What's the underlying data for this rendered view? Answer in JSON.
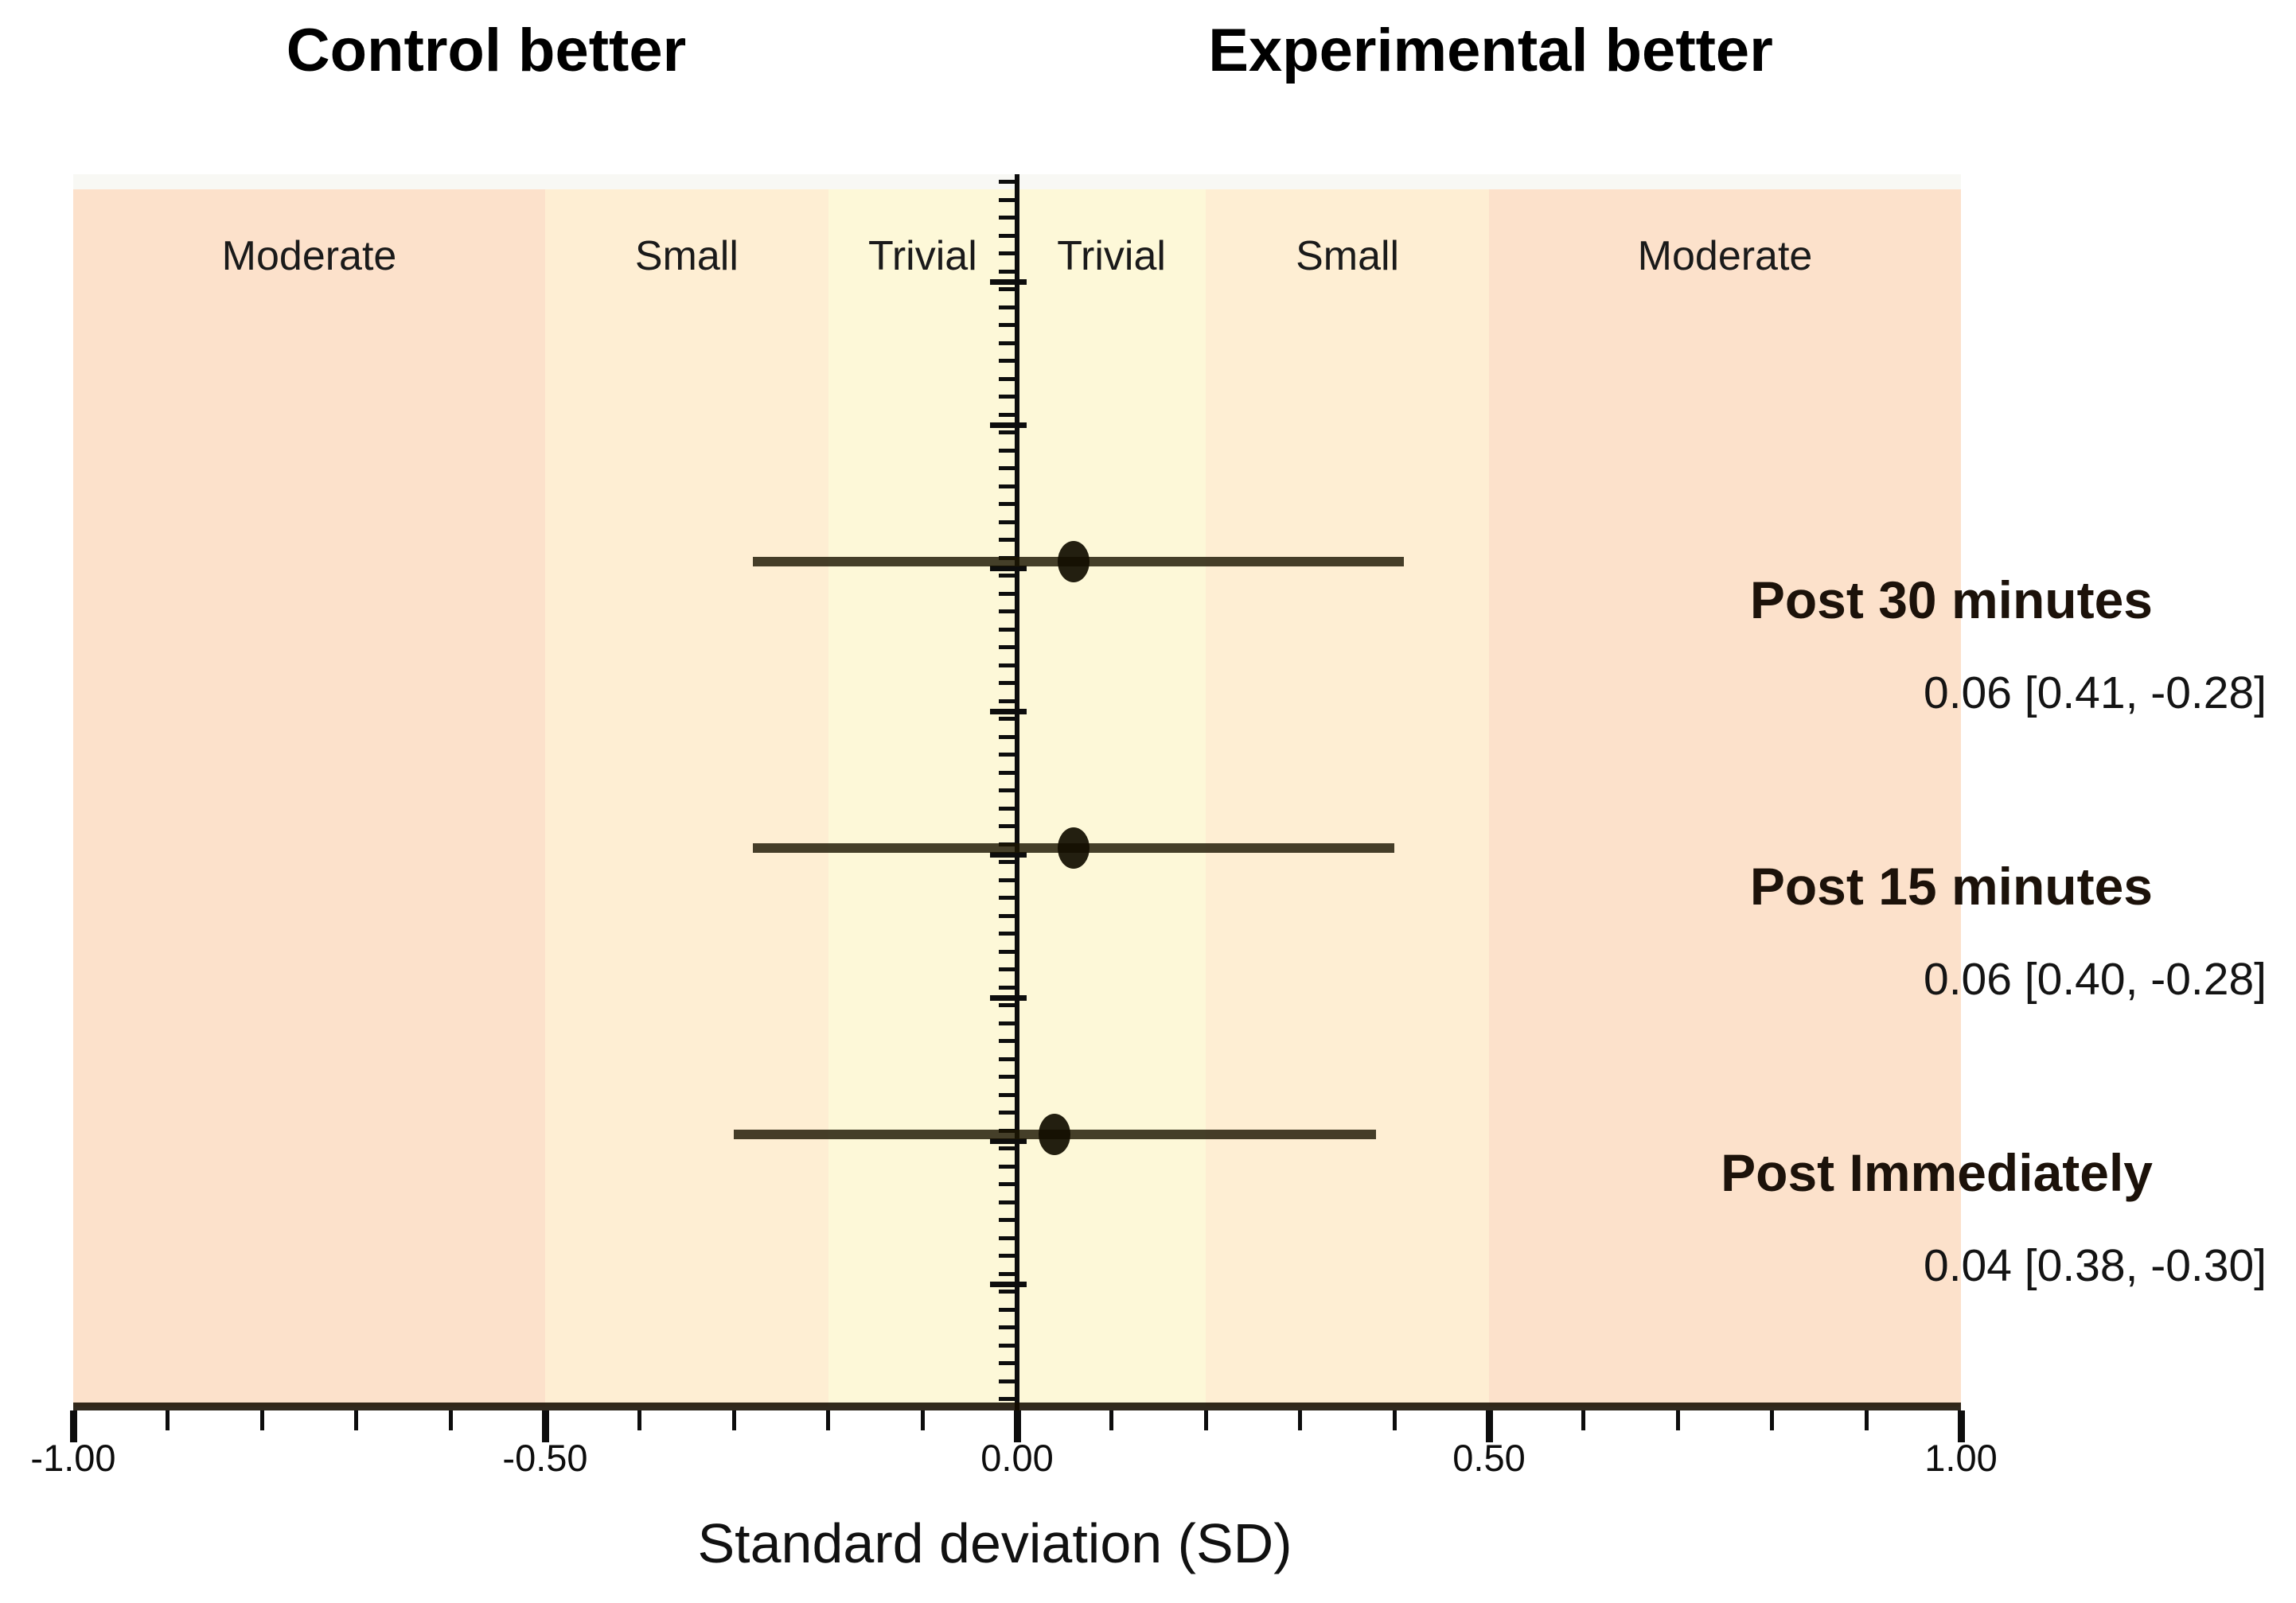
{
  "header": {
    "left": "Control better",
    "right": "Experimental better"
  },
  "chart_data": {
    "type": "scatter",
    "subtype": "forest-plot",
    "title": "",
    "xlabel": "Standard deviation (SD)",
    "ylabel": "",
    "xlim": [
      -1.0,
      1.0
    ],
    "x_major_ticks": [
      -1.0,
      -0.5,
      0.0,
      0.5,
      1.0
    ],
    "x_tick_labels": [
      "-1.00",
      "-0.50",
      "0.00",
      "0.50",
      "1.00"
    ],
    "x_minor_tick_step": 0.1,
    "grid": false,
    "zero_line": true,
    "bands": [
      {
        "label": "Moderate",
        "zone": "moderate",
        "side": "control",
        "range": [
          -1.0,
          -0.5
        ]
      },
      {
        "label": "Small",
        "zone": "small",
        "side": "control",
        "range": [
          -0.5,
          -0.2
        ]
      },
      {
        "label": "Trivial",
        "zone": "trivial",
        "side": "control",
        "range": [
          -0.2,
          0.0
        ]
      },
      {
        "label": "Trivial",
        "zone": "trivial",
        "side": "experimental",
        "range": [
          0.0,
          0.2
        ]
      },
      {
        "label": "Small",
        "zone": "small",
        "side": "experimental",
        "range": [
          0.2,
          0.5
        ]
      },
      {
        "label": "Moderate",
        "zone": "moderate",
        "side": "experimental",
        "range": [
          0.5,
          1.0
        ]
      }
    ],
    "points": [
      {
        "label": "Post 30 minutes",
        "value": 0.06,
        "ci_lower": -0.28,
        "ci_upper": 0.41,
        "value_label": "0.06 [0.41, -0.28]"
      },
      {
        "label": "Post 15 minutes",
        "value": 0.06,
        "ci_lower": -0.28,
        "ci_upper": 0.4,
        "value_label": "0.06 [0.40, -0.28]"
      },
      {
        "label": "Post Immediately",
        "value": 0.04,
        "ci_lower": -0.3,
        "ci_upper": 0.38,
        "value_label": "0.04 [0.38, -0.30]"
      }
    ]
  },
  "colors": {
    "zone_moderate": "#fce1cb",
    "zone_small": "#feeed3",
    "zone_trivial": "#fdf8d8",
    "top_strip": "#f8f8f4",
    "ci_line": "rgba(28,22,2,0.82)",
    "marker": "rgba(18,14,0,0.93)",
    "axis": "#0d0d0d",
    "x_axis_line": "rgba(20,12,0,0.88)"
  }
}
